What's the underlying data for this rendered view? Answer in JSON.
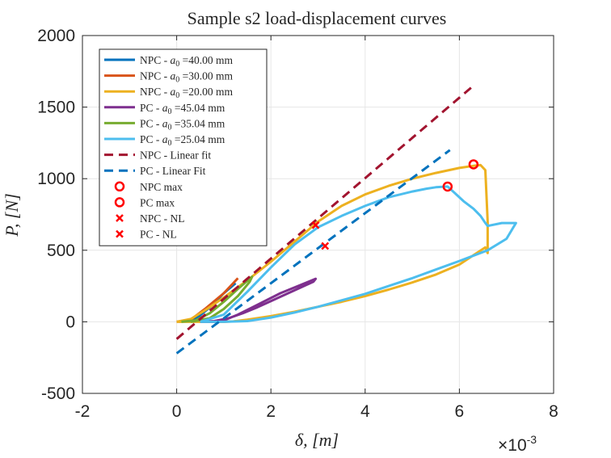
{
  "chart_data": {
    "type": "line",
    "title": "Sample s2 load-displacement curves",
    "xlabel": "δ, [m]",
    "ylabel": "P, [N]",
    "x_exponent_label": "×10",
    "x_exponent_power": "-3",
    "xlim": [
      -2,
      8
    ],
    "ylim": [
      -500,
      2000
    ],
    "xticks": [
      -2,
      0,
      2,
      4,
      6,
      8
    ],
    "yticks": [
      -500,
      0,
      500,
      1000,
      1500,
      2000
    ],
    "xtick_labels": [
      "-2",
      "0",
      "2",
      "4",
      "6",
      "8"
    ],
    "ytick_labels": [
      "-500",
      "0",
      "500",
      "1000",
      "1500",
      "2000"
    ],
    "grid": true,
    "legend_position": "top-left",
    "series": [
      {
        "name": "NPC - a0 =40.00 mm",
        "label_prefix": "NPC - ",
        "label_suffix": " =40.00 mm",
        "color": "#0072BD",
        "style": "solid",
        "x": [
          0.05,
          0.4,
          0.7,
          1.0,
          1.25
        ],
        "y": [
          0,
          20,
          100,
          200,
          270
        ]
      },
      {
        "name": "NPC - a0 =30.00 mm",
        "label_prefix": "NPC - ",
        "label_suffix": " =30.00 mm",
        "color": "#D95319",
        "style": "solid",
        "x": [
          0,
          0.3,
          0.6,
          1.0,
          1.3
        ],
        "y": [
          0,
          15,
          90,
          200,
          305
        ]
      },
      {
        "name": "NPC - a0 =20.00 mm",
        "label_prefix": "NPC - ",
        "label_suffix": " =20.00 mm",
        "color": "#EDB120",
        "style": "solid",
        "x": [
          0,
          0.3,
          0.6,
          1.0,
          1.5,
          2.0,
          2.5,
          3.0,
          3.5,
          4.0,
          4.5,
          5.0,
          5.5,
          6.0,
          6.3,
          6.45,
          6.55,
          6.6,
          6.6,
          6.55,
          6.0,
          5.5,
          5.0,
          4.5,
          4.0,
          3.5,
          3.0,
          2.5,
          2.0,
          1.5,
          1.2,
          1.0,
          0.8,
          0.5,
          0.2,
          0
        ],
        "y": [
          0,
          20,
          80,
          170,
          290,
          420,
          560,
          700,
          810,
          890,
          950,
          1000,
          1040,
          1075,
          1090,
          1095,
          1060,
          700,
          480,
          520,
          400,
          330,
          275,
          225,
          180,
          140,
          105,
          70,
          40,
          15,
          3,
          0,
          0,
          0,
          0,
          0
        ]
      },
      {
        "name": "PC - a0 =45.04 mm",
        "label_prefix": "PC - ",
        "label_suffix": " =45.04 mm",
        "color": "#7E2F8E",
        "style": "solid",
        "x": [
          0.5,
          0.8,
          1.0,
          1.3,
          1.6,
          1.9,
          2.2,
          2.5,
          2.8,
          2.95,
          2.9,
          2.6,
          2.3,
          2.0,
          1.7,
          1.4,
          1.1,
          0.8,
          0.5
        ],
        "y": [
          0,
          0,
          10,
          50,
          100,
          150,
          200,
          240,
          280,
          300,
          280,
          235,
          190,
          145,
          100,
          60,
          25,
          5,
          0
        ]
      },
      {
        "name": "PC - a0 =35.04 mm",
        "label_prefix": "PC - ",
        "label_suffix": " =35.04 mm",
        "color": "#77AC30",
        "style": "solid",
        "x": [
          0.1,
          0.4,
          0.7,
          1.0,
          1.3,
          1.6,
          1.55,
          1.3,
          1.0,
          0.7,
          0.3
        ],
        "y": [
          0,
          10,
          60,
          140,
          230,
          315,
          280,
          180,
          90,
          25,
          0
        ]
      },
      {
        "name": "PC - a0 =25.04 mm",
        "label_prefix": "PC - ",
        "label_suffix": " =25.04 mm",
        "color": "#4DBEEE",
        "style": "solid",
        "x": [
          0.5,
          1.0,
          1.5,
          2.0,
          2.5,
          3.0,
          3.5,
          4.0,
          4.5,
          5.0,
          5.3,
          5.5,
          5.75,
          5.9,
          6.1,
          6.3,
          6.45,
          6.55,
          6.6,
          6.9,
          7.2,
          7.0,
          6.6,
          6.0,
          5.5,
          5.0,
          4.5,
          4.0,
          3.5,
          3.0,
          2.5,
          2.0,
          1.5,
          1.0,
          0.5
        ],
        "y": [
          0,
          50,
          210,
          380,
          540,
          660,
          740,
          810,
          870,
          910,
          930,
          940,
          945,
          900,
          840,
          790,
          740,
          690,
          670,
          690,
          690,
          580,
          500,
          425,
          365,
          305,
          250,
          195,
          150,
          105,
          65,
          30,
          5,
          0,
          0
        ]
      },
      {
        "name": "NPC - Linear fit",
        "color": "#A2142F",
        "style": "dashed",
        "x": [
          0,
          6.3
        ],
        "y": [
          -120,
          1650
        ]
      },
      {
        "name": "PC - Linear Fit",
        "color": "#0072BD",
        "style": "dashed",
        "x": [
          0,
          5.8
        ],
        "y": [
          -220,
          1200
        ]
      }
    ],
    "markers": [
      {
        "name": "NPC max",
        "symbol": "o",
        "color": "#FF0000",
        "x": 6.3,
        "y": 1100
      },
      {
        "name": "PC max",
        "symbol": "o",
        "color": "#FF0000",
        "x": 5.75,
        "y": 945
      },
      {
        "name": "NPC - NL",
        "symbol": "x",
        "color": "#FF0000",
        "x": 2.95,
        "y": 675
      },
      {
        "name": "PC - NL",
        "symbol": "x",
        "color": "#FF0000",
        "x": 3.15,
        "y": 530
      }
    ],
    "legend_order": [
      "NPC - a0 =40.00 mm",
      "NPC - a0 =30.00 mm",
      "NPC - a0 =20.00 mm",
      "PC - a0 =45.04 mm",
      "PC - a0 =35.04 mm",
      "PC - a0 =25.04 mm",
      "NPC - Linear fit",
      "PC - Linear Fit",
      "NPC max",
      "PC max",
      "NPC - NL",
      "PC - NL"
    ]
  }
}
